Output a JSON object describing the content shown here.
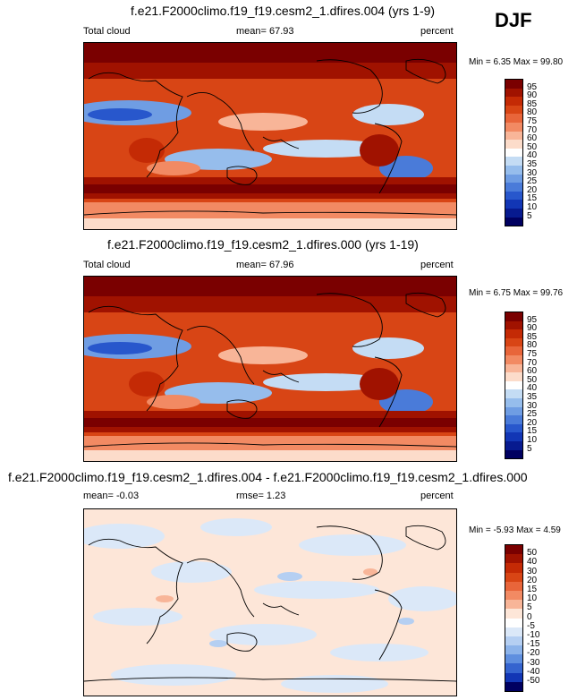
{
  "season": "DJF",
  "panels": [
    {
      "title": "f.e21.F2000climo.f19_f19.cesm2_1.dfires.004 (yrs 1-9)",
      "left_label": "Total cloud",
      "mean_label": "mean=  67.93",
      "units": "percent",
      "minmax": "Min =   6.35 Max =  99.80"
    },
    {
      "title": "f.e21.F2000climo.f19_f19.cesm2_1.dfires.000 (yrs 1-19)",
      "left_label": "Total cloud",
      "mean_label": "mean=  67.96",
      "units": "percent",
      "minmax": "Min =   6.75 Max =  99.76"
    },
    {
      "title": "f.e21.F2000climo.f19_f19.cesm2_1.dfires.004 - f.e21.F2000climo.f19_f19.cesm2_1.dfires.000",
      "left_label": "mean=  -0.03",
      "mean_label": "rmse=   1.23",
      "units": "percent",
      "minmax": "Min =  -5.93 Max =   4.59"
    }
  ],
  "chart_data": [
    {
      "type": "heatmap",
      "title": "f.e21.F2000climo.f19_f19.cesm2_1.dfires.004 (yrs 1-9)",
      "variable": "Total cloud",
      "units": "percent",
      "mean": 67.93,
      "min": 6.35,
      "max": 99.8,
      "colorbar_levels": [
        95,
        90,
        85,
        80,
        75,
        70,
        60,
        50,
        40,
        35,
        30,
        25,
        20,
        15,
        10,
        5
      ],
      "colors": [
        "#7a0000",
        "#a01200",
        "#c42a05",
        "#d84515",
        "#e8653a",
        "#f28a63",
        "#f8b598",
        "#fcdcca",
        "#ffffff",
        "#c4dcf4",
        "#96bdec",
        "#6f9de3",
        "#4a7bd9",
        "#2857cc",
        "#1236b5",
        "#071a8f",
        "#000060"
      ]
    },
    {
      "type": "heatmap",
      "title": "f.e21.F2000climo.f19_f19.cesm2_1.dfires.000 (yrs 1-19)",
      "variable": "Total cloud",
      "units": "percent",
      "mean": 67.96,
      "min": 6.75,
      "max": 99.76,
      "colorbar_levels": [
        95,
        90,
        85,
        80,
        75,
        70,
        60,
        50,
        40,
        35,
        30,
        25,
        20,
        15,
        10,
        5
      ],
      "colors": [
        "#7a0000",
        "#a01200",
        "#c42a05",
        "#d84515",
        "#e8653a",
        "#f28a63",
        "#f8b598",
        "#fcdcca",
        "#ffffff",
        "#c4dcf4",
        "#96bdec",
        "#6f9de3",
        "#4a7bd9",
        "#2857cc",
        "#1236b5",
        "#071a8f",
        "#000060"
      ]
    },
    {
      "type": "heatmap",
      "title": "f.e21.F2000climo.f19_f19.cesm2_1.dfires.004 - f.e21.F2000climo.f19_f19.cesm2_1.dfires.000",
      "units": "percent",
      "mean": -0.03,
      "rmse": 1.23,
      "min": -5.93,
      "max": 4.59,
      "colorbar_levels": [
        50,
        40,
        30,
        20,
        15,
        10,
        5,
        0,
        -5,
        -10,
        -15,
        -20,
        -30,
        -40,
        -50
      ],
      "colors": [
        "#7a0000",
        "#a01200",
        "#c42a05",
        "#d84515",
        "#e8653a",
        "#f28a63",
        "#f8b598",
        "#fde6d8",
        "#ffffff",
        "#dbe8f8",
        "#b5cff2",
        "#8cb3ea",
        "#5f8fdf",
        "#3564cf",
        "#1236b5",
        "#000060"
      ]
    }
  ]
}
